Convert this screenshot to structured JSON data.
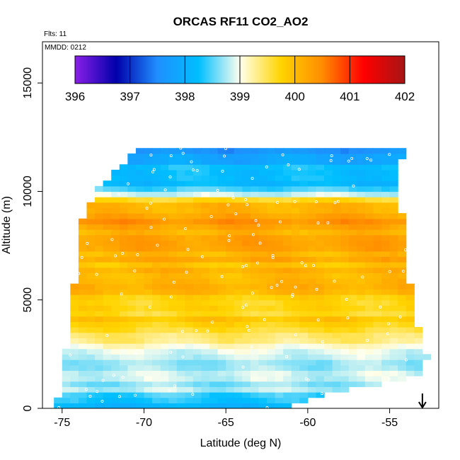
{
  "chart_data": {
    "type": "heatmap",
    "title": "ORCAS RF11 CO2_AO2",
    "xlabel": "Latitude (deg N)",
    "ylabel": "Altitude (m)",
    "xlim": [
      -76.2,
      -52
    ],
    "ylim": [
      0,
      16900
    ],
    "x_ticks": [
      -75,
      -70,
      -65,
      -60,
      -55
    ],
    "x_tick_labels": [
      "-75",
      "-70",
      "-65",
      "-60",
      "-55"
    ],
    "y_ticks": [
      0,
      5000,
      10000,
      15000
    ],
    "y_tick_labels": [
      "0",
      "5000",
      "10000",
      "15000"
    ],
    "flights_note": "Flts: 11",
    "date_note": "MMDD: 0212",
    "arrow_latitude": -53,
    "colorbar": {
      "min": 396,
      "max": 402,
      "ticks": [
        396,
        397,
        398,
        399,
        400,
        401,
        402
      ],
      "tick_labels": [
        "396",
        "397",
        "398",
        "399",
        "400",
        "401",
        "402"
      ],
      "stops": [
        "#8a1fe8",
        "#0000aa",
        "#1f8fff",
        "#00bfff",
        "#ffffee",
        "#ffd400",
        "#ff8c00",
        "#ff0000",
        "#a51515"
      ]
    },
    "profile_edges": [
      {
        "alt": 0,
        "west": -75.4,
        "east": -61.8
      },
      {
        "alt": 800,
        "west": -75.2,
        "east": -58
      },
      {
        "alt": 1500,
        "west": -75.0,
        "east": -53.0
      },
      {
        "alt": 2500,
        "west": -74.8,
        "east": -52.7
      },
      {
        "alt": 3500,
        "west": -74.6,
        "east": -53.2
      },
      {
        "alt": 5000,
        "west": -74.3,
        "east": -53.6
      },
      {
        "alt": 6500,
        "west": -74.2,
        "east": -53.9
      },
      {
        "alt": 8500,
        "west": -74.0,
        "east": -54.1
      },
      {
        "alt": 10000,
        "west": -73.0,
        "east": -54.5
      },
      {
        "alt": 11200,
        "west": -71.5,
        "east": -54.3
      },
      {
        "alt": 12000,
        "west": -70.1,
        "east": -54.2
      }
    ],
    "altitude_profile": [
      {
        "alt": 0,
        "co2": 398.0
      },
      {
        "alt": 600,
        "co2": 398.4
      },
      {
        "alt": 1200,
        "co2": 398.9
      },
      {
        "alt": 1800,
        "co2": 398.8
      },
      {
        "alt": 2400,
        "co2": 398.9
      },
      {
        "alt": 3000,
        "co2": 399.2
      },
      {
        "alt": 3500,
        "co2": 399.5
      },
      {
        "alt": 4000,
        "co2": 399.8
      },
      {
        "alt": 4500,
        "co2": 399.6
      },
      {
        "alt": 5000,
        "co2": 399.9
      },
      {
        "alt": 5500,
        "co2": 400.0
      },
      {
        "alt": 6000,
        "co2": 400.1
      },
      {
        "alt": 6500,
        "co2": 400.0
      },
      {
        "alt": 7000,
        "co2": 400.2
      },
      {
        "alt": 7500,
        "co2": 400.1
      },
      {
        "alt": 8000,
        "co2": 400.2
      },
      {
        "alt": 8500,
        "co2": 400.4
      },
      {
        "alt": 9000,
        "co2": 400.2
      },
      {
        "alt": 9500,
        "co2": 399.9
      },
      {
        "alt": 10000,
        "co2": 398.5
      },
      {
        "alt": 10500,
        "co2": 398.1
      },
      {
        "alt": 11000,
        "co2": 398.3
      },
      {
        "alt": 11500,
        "co2": 397.9
      },
      {
        "alt": 12000,
        "co2": 397.6
      }
    ]
  }
}
